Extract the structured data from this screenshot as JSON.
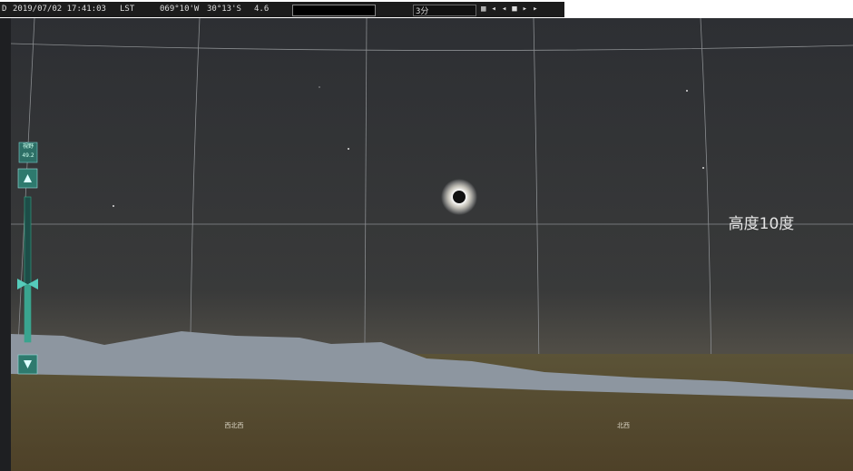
{
  "toolbar": {
    "mode": "D",
    "datetime": "2019/07/02 17:41:03",
    "time_system": "LST",
    "longitude": "069°10'W",
    "latitude": "30°13'S",
    "magnitude": "4.6",
    "step": "3分"
  },
  "fov_panel": {
    "label": "視野",
    "value": "49.2"
  },
  "sky": {
    "altitude_label": "高度10度",
    "directions": [
      "西北西",
      "北西"
    ]
  }
}
